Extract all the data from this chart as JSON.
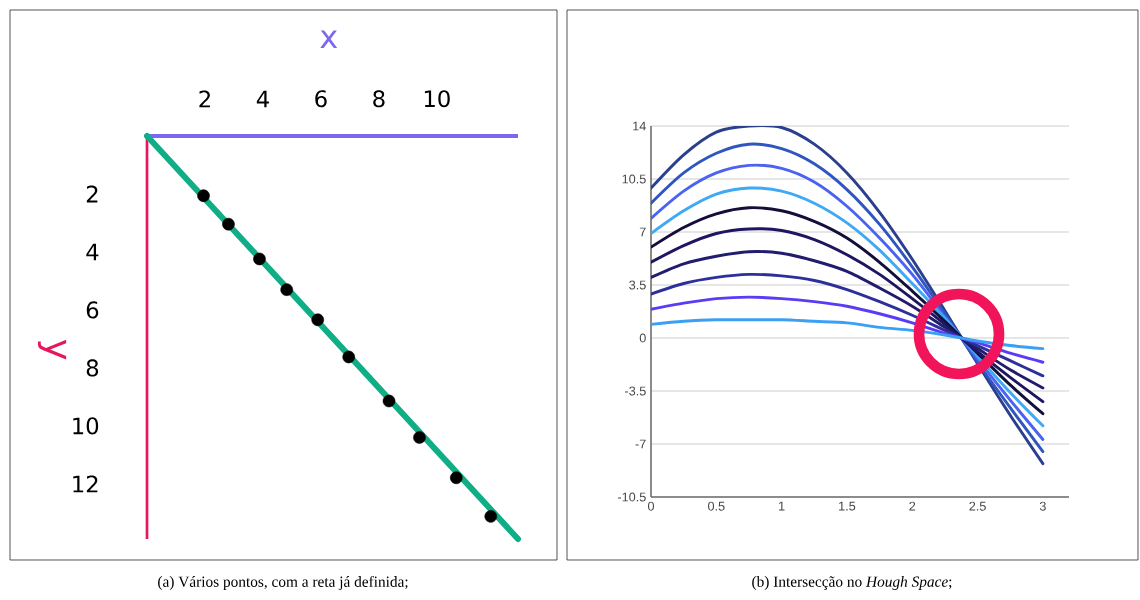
{
  "chart_data": [
    {
      "type": "scatter",
      "xlabel": "x",
      "ylabel": "y",
      "xlim": [
        0,
        12.8
      ],
      "ylim": [
        13.9,
        0
      ],
      "xticks": [
        2,
        4,
        6,
        8,
        10
      ],
      "yticks": [
        2,
        4,
        6,
        8,
        10,
        12
      ],
      "series": [
        {
          "type": "scatter",
          "marker": "circle",
          "color": "#000000",
          "x": [
            1.95,
            2.81,
            3.88,
            4.82,
            5.89,
            6.96,
            8.35,
            9.4,
            10.67,
            11.86
          ],
          "values": [
            2.06,
            3.04,
            4.24,
            5.3,
            6.34,
            7.62,
            9.14,
            10.4,
            11.79,
            13.12
          ]
        },
        {
          "type": "line",
          "color": "#10ae86",
          "x": [
            0,
            12.8
          ],
          "values": [
            0,
            13.9
          ]
        }
      ],
      "annotations": [
        "(a) Vários pontos, com a reta já definida;"
      ]
    },
    {
      "type": "line",
      "x": [
        0,
        0.25,
        0.5,
        0.75,
        1,
        1.25,
        1.5,
        1.75,
        2,
        2.25,
        2.5,
        2.75,
        3
      ],
      "xlim": [
        0,
        3.2
      ],
      "ylim": [
        -10.5,
        14
      ],
      "xticks": [
        0,
        0.5,
        1,
        1.5,
        2,
        2.5,
        3
      ],
      "yticks": [
        -10.5,
        -7,
        -3.5,
        0,
        3.5,
        7,
        10.5,
        14
      ],
      "grid": "y",
      "series": [
        {
          "color": "#2b3f8f",
          "values": [
            9.9,
            12.1,
            13.6,
            14.0,
            13.9,
            12.8,
            10.9,
            8.3,
            5.2,
            1.8,
            -1.7,
            -5.1,
            -8.3
          ]
        },
        {
          "color": "#2f55c0",
          "values": [
            8.9,
            10.9,
            12.2,
            12.8,
            12.5,
            11.5,
            9.8,
            7.5,
            4.7,
            1.6,
            -1.6,
            -4.6,
            -7.5
          ]
        },
        {
          "color": "#4a63f0",
          "values": [
            7.9,
            9.7,
            10.9,
            11.4,
            11.2,
            10.3,
            8.7,
            6.6,
            4.2,
            1.4,
            -1.4,
            -4.1,
            -6.7
          ]
        },
        {
          "color": "#3fa9f5",
          "values": [
            6.9,
            8.4,
            9.5,
            9.9,
            9.7,
            8.9,
            7.6,
            5.8,
            3.6,
            1.3,
            -1.2,
            -3.6,
            -5.8
          ]
        },
        {
          "color": "#12103a",
          "values": [
            6.0,
            7.3,
            8.2,
            8.6,
            8.4,
            7.7,
            6.6,
            5.0,
            3.1,
            1.1,
            -1.0,
            -3.1,
            -5.0
          ]
        },
        {
          "color": "#1e1660",
          "values": [
            5.0,
            6.1,
            6.9,
            7.2,
            7.1,
            6.5,
            5.5,
            4.2,
            2.6,
            0.9,
            -0.9,
            -2.6,
            -4.2
          ]
        },
        {
          "color": "#221c6e",
          "values": [
            4.0,
            4.9,
            5.4,
            5.7,
            5.6,
            5.1,
            4.4,
            3.3,
            2.1,
            0.7,
            -0.7,
            -2.1,
            -3.3
          ]
        },
        {
          "color": "#2d2f9a",
          "values": [
            2.9,
            3.6,
            4.0,
            4.2,
            4.1,
            3.8,
            3.2,
            2.4,
            1.5,
            0.5,
            -0.5,
            -1.5,
            -2.5
          ]
        },
        {
          "color": "#5a3cf5",
          "values": [
            1.9,
            2.3,
            2.6,
            2.7,
            2.6,
            2.4,
            2.1,
            1.6,
            1.0,
            0.3,
            -0.3,
            -1.0,
            -1.6
          ]
        },
        {
          "color": "#3aa0f5",
          "values": [
            0.9,
            1.1,
            1.2,
            1.2,
            1.2,
            1.1,
            1.0,
            0.7,
            0.5,
            0.2,
            -0.2,
            -0.5,
            -0.7
          ]
        }
      ],
      "annotations": [
        "(b) Intersecção no *Hough Space*;"
      ]
    }
  ]
}
